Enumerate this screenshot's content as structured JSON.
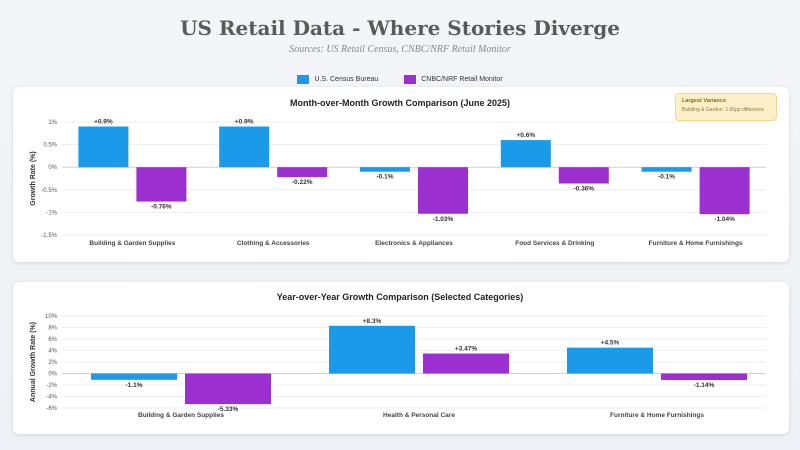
{
  "header": {
    "title": "US Retail Data - Where Stories Diverge",
    "subtitle": "Sources: US Retail Census, CNBC/NRF Retail Monitor"
  },
  "legend": [
    {
      "label": "U.S. Census Bureau",
      "color": "#1a9ae8"
    },
    {
      "label": "CNBC/NRF Retail Monitor",
      "color": "#9b2fcf"
    }
  ],
  "callout": {
    "title": "Largest Variance",
    "text": "Building & Garden: 1.66pp difference"
  },
  "chart_data": [
    {
      "type": "bar",
      "title": "Month-over-Month Growth Comparison (June 2025)",
      "ylabel": "Growth Rate (%)",
      "xlabel": "",
      "ylim": [
        -1.5,
        1
      ],
      "yticks": [
        1,
        0.5,
        0,
        -0.5,
        -1,
        -1.5
      ],
      "ytick_labels": [
        "1%",
        "0.5%",
        "0%",
        "-0.5%",
        "-1%",
        "-1.5%"
      ],
      "grid": true,
      "categories": [
        "Building & Garden Supplies",
        "Clothing & Accessories",
        "Electronics & Appliances",
        "Food Services & Drinking",
        "Furniture & Home Furnishings"
      ],
      "series": [
        {
          "name": "U.S. Census Bureau",
          "color": "#1a9ae8",
          "values": [
            0.9,
            0.9,
            -0.1,
            0.6,
            -0.1
          ],
          "labels": [
            "+0.9%",
            "+0.9%",
            "-0.1%",
            "+0.6%",
            "-0.1%"
          ]
        },
        {
          "name": "CNBC/NRF Retail Monitor",
          "color": "#9b2fcf",
          "values": [
            -0.76,
            -0.22,
            -1.03,
            -0.36,
            -1.04
          ],
          "labels": [
            "-0.76%",
            "-0.22%",
            "-1.03%",
            "-0.36%",
            "-1.04%"
          ]
        }
      ]
    },
    {
      "type": "bar",
      "title": "Year-over-Year Growth Comparison (Selected Categories)",
      "ylabel": "Annual Growth Rate (%)",
      "xlabel": "",
      "ylim": [
        -6,
        10
      ],
      "yticks": [
        10,
        8,
        6,
        4,
        2,
        0,
        -2,
        -4,
        -6
      ],
      "ytick_labels": [
        "10%",
        "8%",
        "6%",
        "4%",
        "2%",
        "0%",
        "-2%",
        "-4%",
        "-6%"
      ],
      "grid": true,
      "categories": [
        "Building & Garden Supplies",
        "Health & Personal Care",
        "Furniture & Home Furnishings"
      ],
      "series": [
        {
          "name": "U.S. Census Bureau",
          "color": "#1a9ae8",
          "values": [
            -1.1,
            8.3,
            4.5
          ],
          "labels": [
            "-1.1%",
            "+8.3%",
            "+4.5%"
          ]
        },
        {
          "name": "CNBC/NRF Retail Monitor",
          "color": "#9b2fcf",
          "values": [
            -5.33,
            3.47,
            -1.14
          ],
          "labels": [
            "-5.33%",
            "+3.47%",
            "-1.14%"
          ]
        }
      ]
    }
  ]
}
